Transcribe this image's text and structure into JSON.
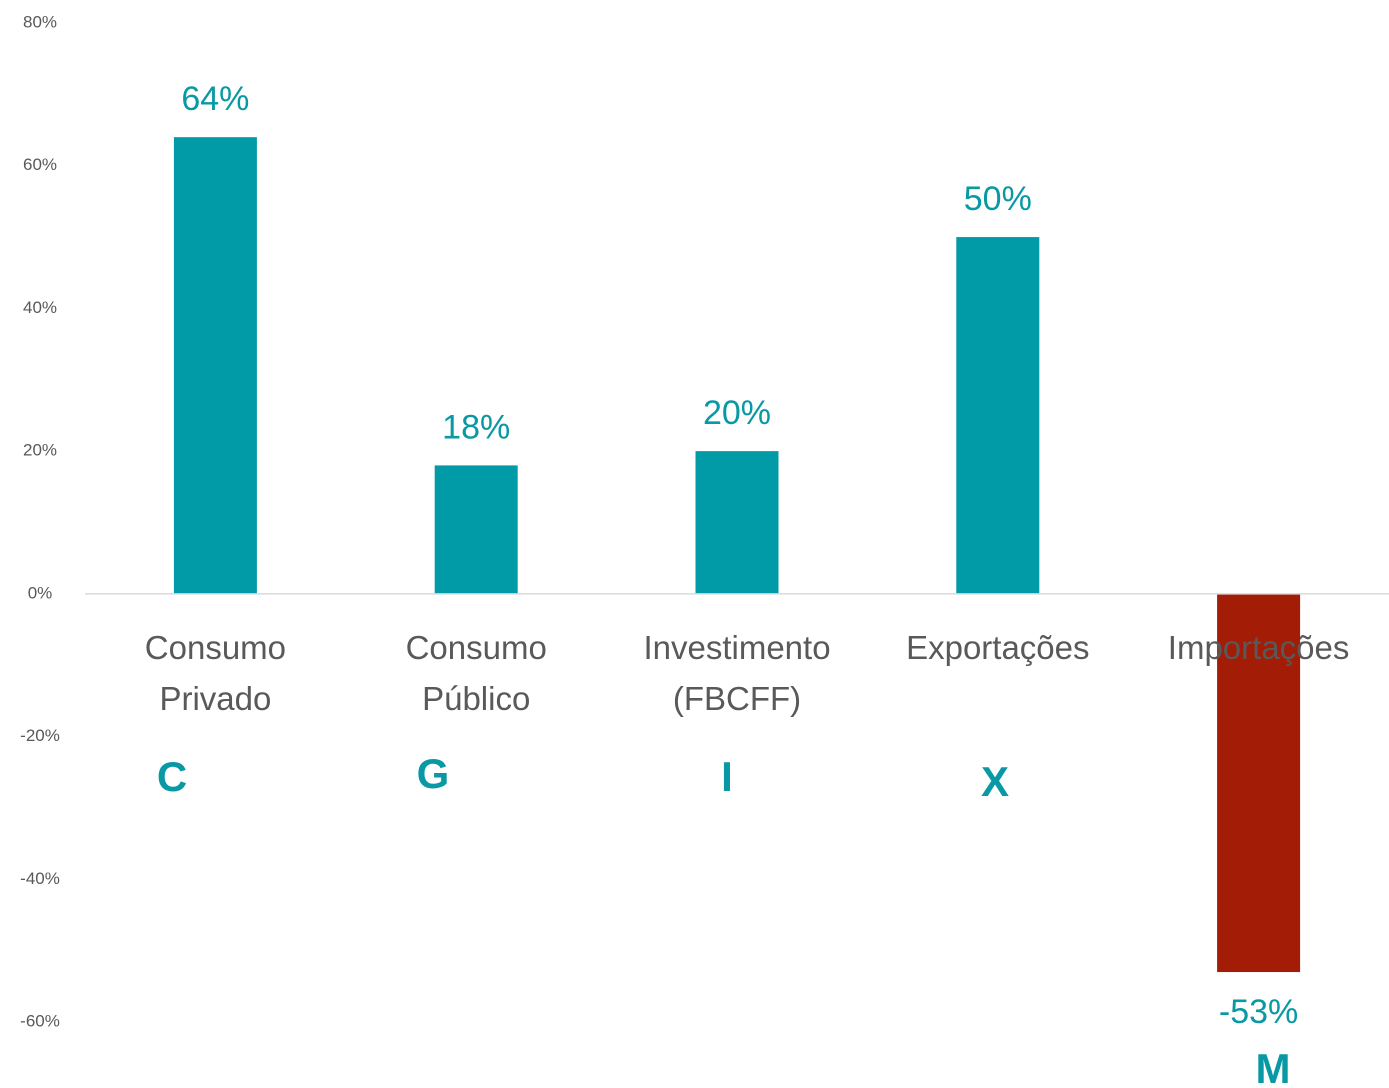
{
  "chart_data": {
    "type": "bar",
    "categories": [
      [
        "Consumo",
        "Privado"
      ],
      [
        "Consumo",
        "Público"
      ],
      [
        "Investimento",
        "(FBCFF)"
      ],
      [
        "Exportações"
      ],
      [
        "Importações"
      ]
    ],
    "values": [
      64,
      18,
      20,
      50,
      -53
    ],
    "value_labels": [
      "64%",
      "18%",
      "20%",
      "50%",
      "-53%"
    ],
    "colors": [
      "#009ba7",
      "#009ba7",
      "#009ba7",
      "#009ba7",
      "#a21c06"
    ],
    "annotations": [
      "C",
      "G",
      "I",
      "X",
      "M"
    ],
    "ylim": [
      -60,
      80
    ],
    "yticks": [
      {
        "value": -60,
        "label": "-60%"
      },
      {
        "value": -40,
        "label": "-40%"
      },
      {
        "value": -20,
        "label": "-20%"
      },
      {
        "value": 0,
        "label": "0%"
      },
      {
        "value": 20,
        "label": "20%"
      },
      {
        "value": 40,
        "label": "40%"
      },
      {
        "value": 60,
        "label": "60%"
      },
      {
        "value": 80,
        "label": "80%"
      }
    ],
    "grid": false
  }
}
